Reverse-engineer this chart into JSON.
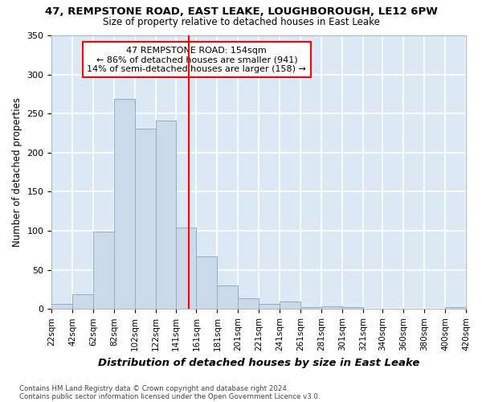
{
  "title1": "47, REMPSTONE ROAD, EAST LEAKE, LOUGHBOROUGH, LE12 6PW",
  "title2": "Size of property relative to detached houses in East Leake",
  "xlabel": "Distribution of detached houses by size in East Leake",
  "ylabel": "Number of detached properties",
  "annotation_line1": "47 REMPSTONE ROAD: 154sqm",
  "annotation_line2": "← 86% of detached houses are smaller (941)",
  "annotation_line3": "14% of semi-detached houses are larger (158) →",
  "property_size": 154,
  "bar_edges": [
    22,
    42,
    62,
    82,
    102,
    122,
    141,
    161,
    181,
    201,
    221,
    241,
    261,
    281,
    301,
    321,
    340,
    360,
    380,
    400,
    420
  ],
  "bar_heights": [
    7,
    19,
    99,
    269,
    231,
    241,
    104,
    67,
    30,
    14,
    6,
    10,
    2,
    3,
    2,
    0,
    0,
    0,
    0,
    2
  ],
  "bar_color": "#ccd9e8",
  "bar_edge_color": "#8aafc8",
  "vline_color": "red",
  "vline_x": 154,
  "background_color": "#dce8f4",
  "grid_color": "white",
  "footer1": "Contains HM Land Registry data © Crown copyright and database right 2024.",
  "footer2": "Contains public sector information licensed under the Open Government Licence v3.0.",
  "ylim": [
    0,
    350
  ],
  "yticks": [
    0,
    50,
    100,
    150,
    200,
    250,
    300,
    350
  ]
}
